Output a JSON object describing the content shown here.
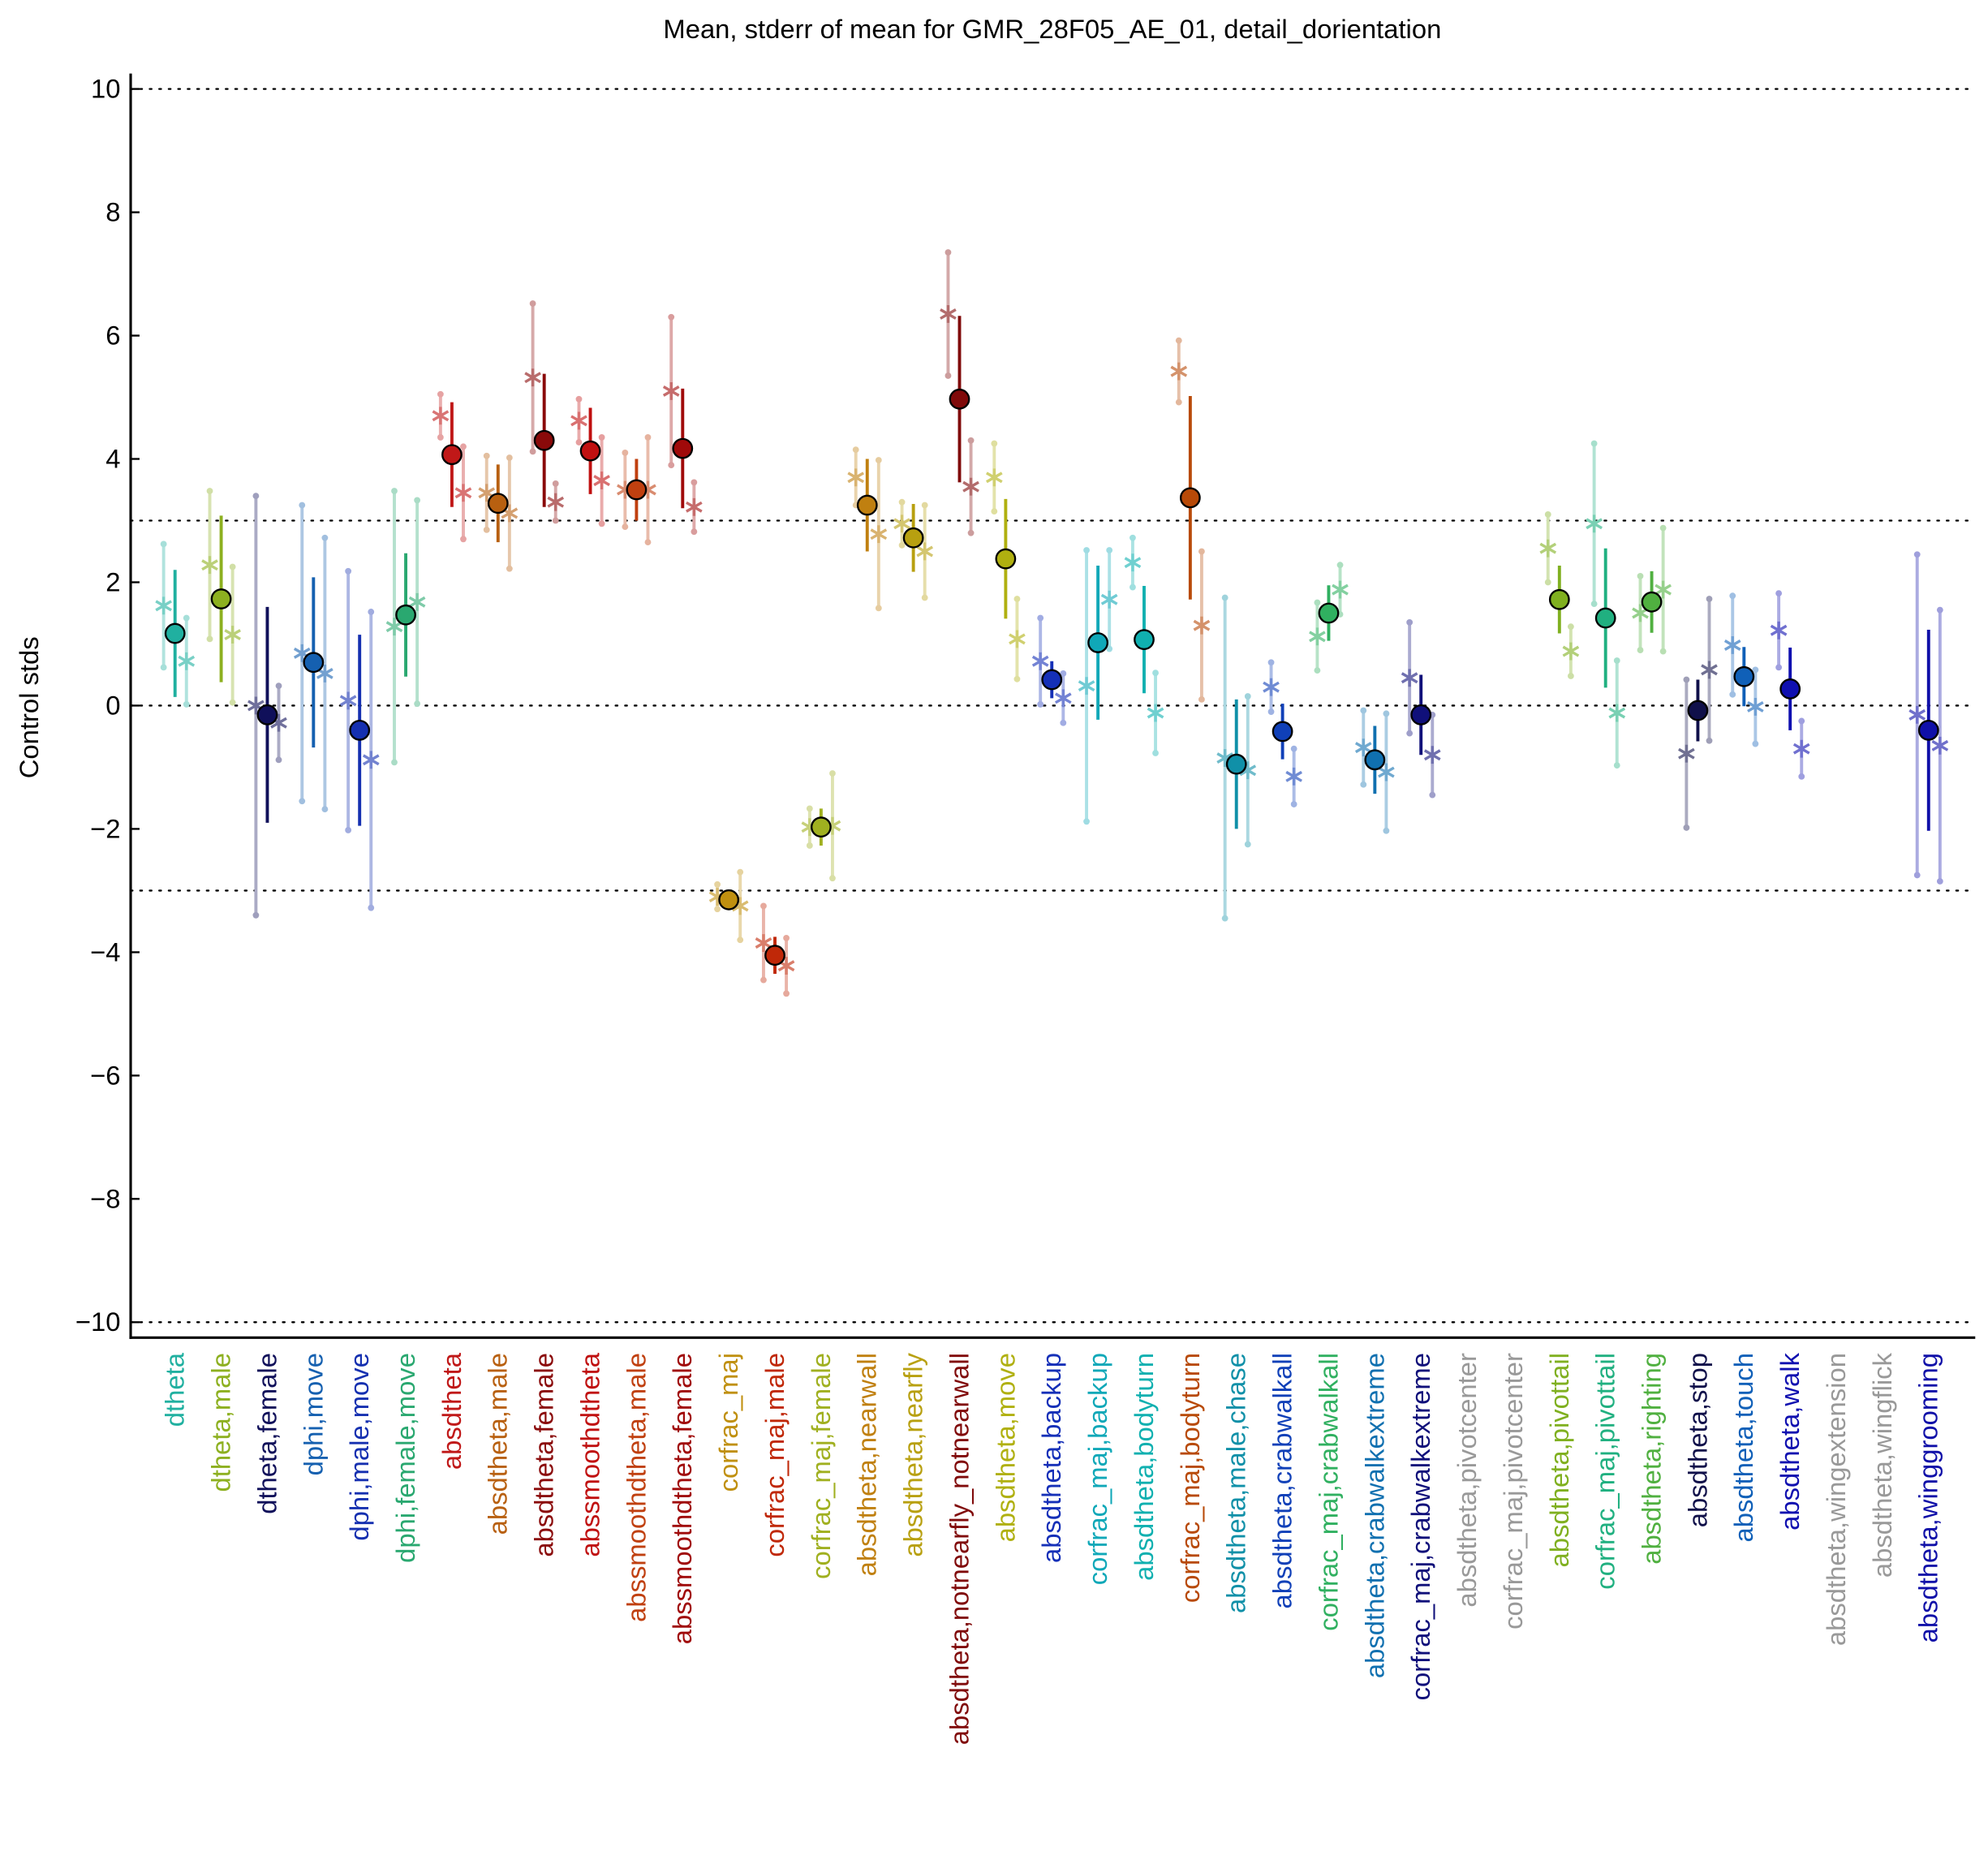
{
  "chart_data": {
    "type": "errorbar",
    "title": "Mean, stderr of mean for GMR_28F05_AE_01, detail_dorientation",
    "y_label": "Control stds",
    "ylim": [
      -10.25,
      10.25
    ],
    "yticks": [
      {
        "value": -10,
        "label": "−10"
      },
      {
        "value": -8,
        "label": "−8"
      },
      {
        "value": -6,
        "label": "−6"
      },
      {
        "value": -4,
        "label": "−4"
      },
      {
        "value": -2,
        "label": "−2"
      },
      0,
      2,
      4,
      6,
      8,
      10
    ],
    "reference_lines": [
      10,
      3,
      0,
      -3,
      -10
    ],
    "categories": [
      "dtheta",
      "dtheta,male",
      "dtheta,female",
      "dphi,move",
      "dphi,male,move",
      "dphi,female,move",
      "absdtheta",
      "absdtheta,male",
      "absdtheta,female",
      "abssmoothdtheta",
      "abssmoothdtheta,male",
      "abssmoothdtheta,female",
      "corfrac_maj",
      "corfrac_maj,male",
      "corfrac_maj,female",
      "absdtheta,nearwall",
      "absdtheta,nearfly",
      "absdtheta,notnearfly_notnearwall",
      "absdtheta,move",
      "absdtheta,backup",
      "corfrac_maj,backup",
      "absdtheta,bodyturn",
      "corfrac_maj,bodyturn",
      "absdtheta,male,chase",
      "absdtheta,crabwalkall",
      "corfrac_maj,crabwalkall",
      "absdtheta,crabwalkextreme",
      "corfrac_maj,crabwalkextreme",
      "absdtheta,pivotcenter",
      "corfrac_maj,pivotcenter",
      "absdtheta,pivottail",
      "corfrac_maj,pivottail",
      "absdtheta,righting",
      "absdtheta,stop",
      "absdtheta,touch",
      "absdtheta,walk",
      "absdtheta,wingextension",
      "absdtheta,wingflick",
      "absdtheta,winggrooming"
    ],
    "colors": [
      "#20b0a0",
      "#8db020",
      "#10105a",
      "#1560b0",
      "#1530b0",
      "#2aa870",
      "#c01818",
      "#b86010",
      "#8a0a0a",
      "#c01010",
      "#c04010",
      "#a00a0a",
      "#c09010",
      "#c02808",
      "#a0b020",
      "#c08010",
      "#b8a010",
      "#800a0a",
      "#b0b010",
      "#1530b8",
      "#10a8b8",
      "#10b0b0",
      "#b84a08",
      "#1090a8",
      "#1040b8",
      "#30b060",
      "#1070b0",
      "#10107a",
      "#999999",
      "#999999",
      "#80b020",
      "#20b080",
      "#50b040",
      "#10104a",
      "#1060b8",
      "#1010b0",
      "#999999",
      "#999999",
      "#1010a8"
    ],
    "means": [
      1.17,
      1.73,
      -0.15,
      0.7,
      -0.4,
      1.47,
      4.07,
      3.28,
      4.3,
      4.13,
      3.5,
      4.17,
      -3.15,
      -4.05,
      -1.97,
      3.25,
      2.72,
      4.97,
      2.38,
      0.42,
      1.02,
      1.07,
      3.37,
      -0.95,
      -0.42,
      1.5,
      -0.88,
      -0.15,
      null,
      null,
      1.72,
      1.42,
      1.68,
      -0.08,
      0.47,
      0.27,
      null,
      null,
      -0.4
    ],
    "errors": [
      1.03,
      1.35,
      1.75,
      1.38,
      1.55,
      1.0,
      0.85,
      0.63,
      1.08,
      0.7,
      0.5,
      0.97,
      0.1,
      0.3,
      0.3,
      0.75,
      0.55,
      1.35,
      0.97,
      0.3,
      1.25,
      0.87,
      1.65,
      1.05,
      0.45,
      0.45,
      0.55,
      0.65,
      null,
      null,
      0.55,
      1.13,
      0.5,
      0.5,
      0.48,
      0.67,
      null,
      null,
      1.63
    ],
    "left_values": [
      1.62,
      2.28,
      0.0,
      0.85,
      0.08,
      1.28,
      4.7,
      3.45,
      5.32,
      4.62,
      3.5,
      5.1,
      -3.1,
      -3.85,
      -1.97,
      3.7,
      2.95,
      6.35,
      3.7,
      0.72,
      0.32,
      2.32,
      5.42,
      -0.85,
      0.3,
      1.12,
      -0.68,
      0.45,
      null,
      null,
      2.55,
      2.95,
      1.5,
      -0.78,
      0.98,
      1.22,
      null,
      null,
      -0.15
    ],
    "left_errors": [
      1.0,
      1.2,
      3.4,
      2.4,
      2.1,
      2.2,
      0.35,
      0.6,
      1.2,
      0.35,
      0.6,
      1.2,
      0.2,
      0.6,
      0.3,
      0.45,
      0.35,
      1.0,
      0.55,
      0.7,
      2.2,
      0.4,
      0.5,
      2.6,
      0.4,
      0.55,
      0.6,
      0.9,
      null,
      null,
      0.55,
      1.3,
      0.6,
      1.2,
      0.8,
      0.6,
      null,
      null,
      2.6
    ],
    "right_values": [
      0.72,
      1.15,
      -0.28,
      0.52,
      -0.88,
      1.68,
      3.45,
      3.12,
      3.3,
      3.65,
      3.5,
      3.22,
      -3.25,
      -4.22,
      -1.95,
      2.78,
      2.5,
      3.55,
      1.08,
      0.12,
      1.72,
      -0.12,
      1.3,
      -1.05,
      -1.15,
      1.88,
      -1.08,
      -0.8,
      null,
      null,
      0.88,
      -0.12,
      1.88,
      0.58,
      -0.02,
      -0.7,
      null,
      null,
      -0.65
    ],
    "right_errors": [
      0.7,
      1.1,
      0.6,
      2.2,
      2.4,
      1.65,
      0.75,
      0.9,
      0.3,
      0.7,
      0.85,
      0.4,
      0.55,
      0.45,
      0.85,
      1.2,
      0.75,
      0.75,
      0.65,
      0.4,
      0.8,
      0.65,
      1.2,
      1.2,
      0.45,
      0.4,
      0.95,
      0.65,
      null,
      null,
      0.4,
      0.85,
      1.0,
      1.15,
      0.6,
      0.45,
      null,
      null,
      2.2
    ]
  }
}
